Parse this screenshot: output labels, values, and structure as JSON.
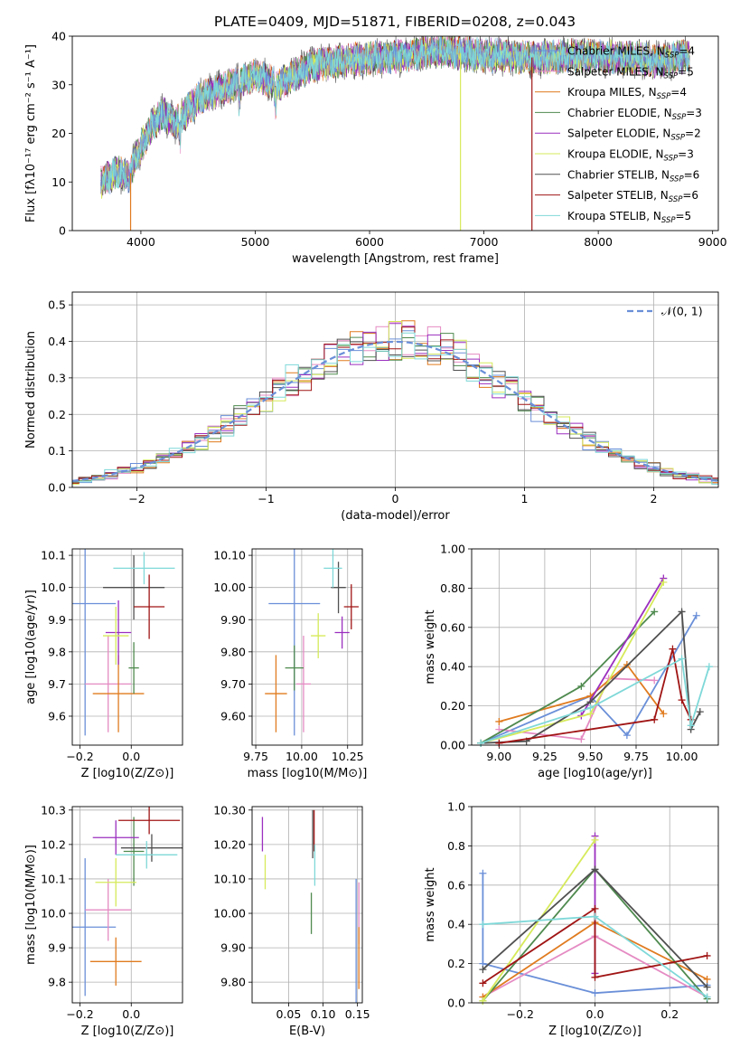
{
  "figure": {
    "title": "PLATE=0409, MJD=51871, FIBERID=0208, z=0.043"
  },
  "colors": {
    "Chabrier MILES": "#6a8fd8",
    "Salpeter MILES": "#e58bc3",
    "Kroupa MILES": "#e07b1f",
    "Chabrier ELODIE": "#4f8a4f",
    "Salpeter ELODIE": "#9b2fbf",
    "Kroupa ELODIE": "#d6ea5a",
    "Chabrier STELIB": "#505050",
    "Salpeter STELIB": "#a01414",
    "Kroupa STELIB": "#7fd8d8"
  },
  "chart_data": [
    {
      "id": "spectrum",
      "type": "line",
      "title": "PLATE=0409, MJD=51871, FIBERID=0208, z=0.043",
      "xlabel": "wavelength [Angstrom, rest frame]",
      "ylabel": "Flux [fλ10⁻¹⁷ erg cm⁻² s⁻¹ A⁻¹]",
      "xlim": [
        3400,
        9050
      ],
      "ylim": [
        0,
        40
      ],
      "xticks": [
        4000,
        5000,
        6000,
        7000,
        8000,
        9000
      ],
      "yticks": [
        0,
        10,
        20,
        30,
        40
      ],
      "grid": false,
      "legend_position": "right",
      "continuum": {
        "x": [
          3650,
          3800,
          3900,
          3950,
          4000,
          4100,
          4200,
          4300,
          4500,
          4700,
          5000,
          5200,
          5500,
          5800,
          6000,
          6300,
          6600,
          6800,
          7000,
          7200,
          7500,
          7800,
          8000,
          8300,
          8500,
          8800
        ],
        "y": [
          10,
          12,
          11,
          15,
          17,
          22,
          24,
          22,
          27,
          29,
          32,
          30,
          34,
          35,
          35.5,
          36,
          37,
          36.5,
          36,
          36,
          35.5,
          36,
          36,
          35.5,
          35,
          36
        ]
      },
      "series": [
        {
          "name": "Chabrier MILES, N_SSP=4",
          "label": "Chabrier MILES, N",
          "sub": "SSP",
          "suffix": "=4"
        },
        {
          "name": "Salpeter MILES, N_SSP=5",
          "label": "Salpeter MILES, N",
          "sub": "SSP",
          "suffix": "=5"
        },
        {
          "name": "Kroupa MILES, N_SSP=4",
          "label": "Kroupa MILES, N",
          "sub": "SSP",
          "suffix": "=4"
        },
        {
          "name": "Chabrier ELODIE, N_SSP=3",
          "label": "Chabrier ELODIE, N",
          "sub": "SSP",
          "suffix": "=3"
        },
        {
          "name": "Salpeter ELODIE, N_SSP=2",
          "label": "Salpeter ELODIE, N",
          "sub": "SSP",
          "suffix": "=2"
        },
        {
          "name": "Kroupa ELODIE, N_SSP=3",
          "label": "Kroupa ELODIE, N",
          "sub": "SSP",
          "suffix": "=3"
        },
        {
          "name": "Chabrier STELIB, N_SSP=6",
          "label": "Chabrier STELIB, N",
          "sub": "SSP",
          "suffix": "=6"
        },
        {
          "name": "Salpeter STELIB, N_SSP=6",
          "label": "Salpeter STELIB, N",
          "sub": "SSP",
          "suffix": "=6"
        },
        {
          "name": "Kroupa STELIB, N_SSP=5",
          "label": "Kroupa STELIB, N",
          "sub": "SSP",
          "suffix": "=5"
        }
      ]
    },
    {
      "id": "residuals",
      "type": "line",
      "xlabel": "(data-model)/error",
      "ylabel": "Normed distribution",
      "xlim": [
        -2.5,
        2.5
      ],
      "ylim": [
        0,
        0.535
      ],
      "xticks": [
        -2,
        -1,
        0,
        1,
        2
      ],
      "yticks": [
        0,
        0.1,
        0.2,
        0.3,
        0.4,
        0.5
      ],
      "grid": true,
      "legend_position": "top-right",
      "legend": "𝒩(0, 1)",
      "reference_curve": {
        "name": "normal(0,1)",
        "mean": 0,
        "sigma": 1
      },
      "histogram_bin_width": 0.1
    },
    {
      "id": "age-vs-Z",
      "type": "scatter",
      "xlabel": "Z [log10(Z/Z⊙)]",
      "ylabel": "age [log10(age/yr)]",
      "xlim": [
        -0.23,
        0.2
      ],
      "ylim": [
        9.51,
        10.12
      ],
      "xticks": [
        -0.2,
        0.0
      ],
      "yticks": [
        9.6,
        9.7,
        9.8,
        9.9,
        10.0,
        10.1
      ],
      "grid": true,
      "points": [
        {
          "series": "Chabrier MILES",
          "x": -0.18,
          "y": 9.95,
          "xerr": 0.12,
          "yerr": 0.41
        },
        {
          "series": "Salpeter MILES",
          "x": -0.09,
          "y": 9.7,
          "xerr": 0.09,
          "yerr": 0.15
        },
        {
          "series": "Kroupa MILES",
          "x": -0.05,
          "y": 9.67,
          "xerr": 0.1,
          "yerr": 0.12
        },
        {
          "series": "Chabrier ELODIE",
          "x": 0.01,
          "y": 9.75,
          "xerr": 0.02,
          "yerr": 0.08
        },
        {
          "series": "Salpeter ELODIE",
          "x": -0.05,
          "y": 9.86,
          "xerr": 0.05,
          "yerr": 0.1
        },
        {
          "series": "Kroupa ELODIE",
          "x": -0.06,
          "y": 9.85,
          "xerr": 0.05,
          "yerr": 0.09
        },
        {
          "series": "Chabrier STELIB",
          "x": 0.01,
          "y": 10.0,
          "xerr": 0.12,
          "yerr": 0.1
        },
        {
          "series": "Salpeter STELIB",
          "x": 0.07,
          "y": 9.94,
          "xerr": 0.06,
          "yerr": 0.1
        },
        {
          "series": "Kroupa STELIB",
          "x": 0.05,
          "y": 10.06,
          "xerr": 0.12,
          "yerr": 0.05
        }
      ]
    },
    {
      "id": "age-vs-mass",
      "type": "scatter",
      "xlabel": "mass [log10(M/M⊙)]",
      "ylabel": "",
      "xlim": [
        9.73,
        10.33
      ],
      "ylim": [
        9.51,
        10.12
      ],
      "xticks": [
        9.75,
        10.0,
        10.25
      ],
      "yticks": [
        9.6,
        9.7,
        9.8,
        9.9,
        10.0,
        10.1
      ],
      "grid": true,
      "points": [
        {
          "series": "Chabrier MILES",
          "x": 9.96,
          "y": 9.95,
          "xerr": 0.14,
          "yerr": 0.41
        },
        {
          "series": "Salpeter MILES",
          "x": 10.01,
          "y": 9.7,
          "xerr": 0.04,
          "yerr": 0.15
        },
        {
          "series": "Kroupa MILES",
          "x": 9.86,
          "y": 9.67,
          "xerr": 0.06,
          "yerr": 0.12
        },
        {
          "series": "Chabrier ELODIE",
          "x": 9.96,
          "y": 9.75,
          "xerr": 0.05,
          "yerr": 0.07
        },
        {
          "series": "Salpeter ELODIE",
          "x": 10.22,
          "y": 9.86,
          "xerr": 0.04,
          "yerr": 0.05
        },
        {
          "series": "Kroupa ELODIE",
          "x": 10.09,
          "y": 9.85,
          "xerr": 0.04,
          "yerr": 0.07
        },
        {
          "series": "Chabrier STELIB",
          "x": 10.2,
          "y": 10.0,
          "xerr": 0.04,
          "yerr": 0.08
        },
        {
          "series": "Salpeter STELIB",
          "x": 10.27,
          "y": 9.94,
          "xerr": 0.04,
          "yerr": 0.07
        },
        {
          "series": "Kroupa STELIB",
          "x": 10.17,
          "y": 10.06,
          "xerr": 0.05,
          "yerr": 0.06
        }
      ]
    },
    {
      "id": "weight-vs-age",
      "type": "line",
      "xlabel": "age [log10(age/yr)]",
      "ylabel": "mass weight",
      "xlim": [
        8.85,
        10.2
      ],
      "ylim": [
        0,
        1.0
      ],
      "xticks": [
        9.0,
        9.25,
        9.5,
        9.75,
        10.0
      ],
      "yticks": [
        0.0,
        0.2,
        0.4,
        0.6,
        0.8,
        1.0
      ],
      "grid": true,
      "series": [
        {
          "name": "Chabrier MILES",
          "x": [
            8.9,
            9.5,
            9.7,
            10.08
          ],
          "y": [
            0.01,
            0.25,
            0.05,
            0.66
          ]
        },
        {
          "name": "Salpeter MILES",
          "x": [
            9.0,
            9.45,
            9.6,
            9.85
          ],
          "y": [
            0.08,
            0.03,
            0.34,
            0.33
          ]
        },
        {
          "name": "Kroupa MILES",
          "x": [
            9.0,
            9.5,
            9.7,
            9.9
          ],
          "y": [
            0.12,
            0.25,
            0.41,
            0.16
          ]
        },
        {
          "name": "Chabrier ELODIE",
          "x": [
            8.9,
            9.45,
            9.85
          ],
          "y": [
            0.01,
            0.3,
            0.68
          ]
        },
        {
          "name": "Salpeter ELODIE",
          "x": [
            9.45,
            9.9
          ],
          "y": [
            0.15,
            0.85
          ]
        },
        {
          "name": "Kroupa ELODIE",
          "x": [
            8.9,
            9.5,
            9.9
          ],
          "y": [
            0.01,
            0.16,
            0.83
          ]
        },
        {
          "name": "Chabrier STELIB",
          "x": [
            8.9,
            9.15,
            9.5,
            10.0,
            10.05,
            10.1
          ],
          "y": [
            0.01,
            0.02,
            0.22,
            0.68,
            0.08,
            0.17
          ]
        },
        {
          "name": "Salpeter STELIB",
          "x": [
            9.0,
            9.85,
            9.95,
            10.0,
            10.05
          ],
          "y": [
            0.01,
            0.13,
            0.49,
            0.23,
            0.13
          ]
        },
        {
          "name": "Kroupa STELIB",
          "x": [
            8.9,
            9.5,
            10.0,
            10.05,
            10.15
          ],
          "y": [
            0.01,
            0.19,
            0.44,
            0.1,
            0.4
          ]
        }
      ]
    },
    {
      "id": "mass-vs-Z",
      "type": "scatter",
      "xlabel": "Z [log10(Z/Z⊙)]",
      "ylabel": "mass [log10(M/M⊙)]",
      "xlim": [
        -0.23,
        0.2
      ],
      "ylim": [
        9.74,
        10.31
      ],
      "xticks": [
        -0.2,
        0.0
      ],
      "yticks": [
        9.8,
        9.9,
        10.0,
        10.1,
        10.2,
        10.3
      ],
      "grid": true,
      "points": [
        {
          "series": "Chabrier MILES",
          "x": -0.18,
          "y": 9.96,
          "xerr": 0.12,
          "yerr": 0.2
        },
        {
          "series": "Salpeter MILES",
          "x": -0.09,
          "y": 10.01,
          "xerr": 0.09,
          "yerr": 0.09
        },
        {
          "series": "Kroupa MILES",
          "x": -0.06,
          "y": 9.86,
          "xerr": 0.1,
          "yerr": 0.07
        },
        {
          "series": "Chabrier ELODIE",
          "x": 0.01,
          "y": 10.18,
          "xerr": 0.04,
          "yerr": 0.1
        },
        {
          "series": "Salpeter ELODIE",
          "x": -0.06,
          "y": 10.22,
          "xerr": 0.09,
          "yerr": 0.05
        },
        {
          "series": "Kroupa ELODIE",
          "x": -0.06,
          "y": 10.09,
          "xerr": 0.08,
          "yerr": 0.07
        },
        {
          "series": "Chabrier STELIB",
          "x": 0.08,
          "y": 10.19,
          "xerr": 0.12,
          "yerr": 0.04
        },
        {
          "series": "Salpeter STELIB",
          "x": 0.07,
          "y": 10.27,
          "xerr": 0.12,
          "yerr": 0.04
        },
        {
          "series": "Kroupa STELIB",
          "x": 0.06,
          "y": 10.17,
          "xerr": 0.12,
          "yerr": 0.04
        }
      ]
    },
    {
      "id": "mass-vs-EBV",
      "type": "scatter",
      "xlabel": "E(B-V)",
      "ylabel": "",
      "xlim": [
        -0.003,
        0.157
      ],
      "ylim": [
        9.74,
        10.31
      ],
      "xticks": [
        0.05,
        0.1,
        0.15
      ],
      "yticks": [
        9.8,
        9.9,
        10.0,
        10.1,
        10.2,
        10.3
      ],
      "grid": true,
      "points": [
        {
          "series": "Chabrier MILES",
          "x": 0.148,
          "y": 9.9,
          "xerr": 0,
          "yerr": 0.2
        },
        {
          "series": "Salpeter MILES",
          "x": 0.152,
          "y": 10.0,
          "xerr": 0,
          "yerr": 0.09
        },
        {
          "series": "Kroupa MILES",
          "x": 0.152,
          "y": 9.87,
          "xerr": 0,
          "yerr": 0.09
        },
        {
          "series": "Chabrier ELODIE",
          "x": 0.083,
          "y": 10.0,
          "xerr": 0,
          "yerr": 0.06
        },
        {
          "series": "Salpeter ELODIE",
          "x": 0.012,
          "y": 10.23,
          "xerr": 0,
          "yerr": 0.05
        },
        {
          "series": "Kroupa ELODIE",
          "x": 0.016,
          "y": 10.12,
          "xerr": 0,
          "yerr": 0.05
        },
        {
          "series": "Chabrier STELIB",
          "x": 0.085,
          "y": 10.23,
          "xerr": 0,
          "yerr": 0.07
        },
        {
          "series": "Salpeter STELIB",
          "x": 0.087,
          "y": 10.24,
          "xerr": 0,
          "yerr": 0.06
        },
        {
          "series": "Kroupa STELIB",
          "x": 0.088,
          "y": 10.14,
          "xerr": 0,
          "yerr": 0.06
        }
      ]
    },
    {
      "id": "weight-vs-Z",
      "type": "line",
      "xlabel": "Z [log10(Z/Z⊙)]",
      "ylabel": "mass weight",
      "xlim": [
        -0.33,
        0.33
      ],
      "ylim": [
        0,
        1.0
      ],
      "xticks": [
        -0.2,
        0.0,
        0.2
      ],
      "yticks": [
        0.0,
        0.2,
        0.4,
        0.6,
        0.8,
        1.0
      ],
      "grid": true,
      "series": [
        {
          "name": "Chabrier MILES",
          "x": [
            -0.3,
            -0.3,
            0.0,
            0.3
          ],
          "y": [
            0.66,
            0.2,
            0.05,
            0.09
          ]
        },
        {
          "name": "Salpeter MILES",
          "x": [
            -0.3,
            0.0,
            0.3
          ],
          "y": [
            0.03,
            0.34,
            0.03
          ]
        },
        {
          "name": "Kroupa MILES",
          "x": [
            -0.3,
            0.0,
            0.3
          ],
          "y": [
            0.03,
            0.41,
            0.12
          ]
        },
        {
          "name": "Chabrier ELODIE",
          "x": [
            -0.3,
            0.0,
            0.3
          ],
          "y": [
            0.01,
            0.68,
            0.02
          ]
        },
        {
          "name": "Salpeter ELODIE",
          "x": [
            0.0,
            0.0
          ],
          "y": [
            0.15,
            0.85
          ]
        },
        {
          "name": "Kroupa ELODIE",
          "x": [
            -0.3,
            0.0
          ],
          "y": [
            0.01,
            0.83
          ]
        },
        {
          "name": "Chabrier STELIB",
          "x": [
            -0.3,
            0.0,
            0.3
          ],
          "y": [
            0.17,
            0.68,
            0.08
          ]
        },
        {
          "name": "Salpeter STELIB",
          "x": [
            -0.3,
            0.0,
            0.0,
            0.3
          ],
          "y": [
            0.1,
            0.48,
            0.13,
            0.24
          ]
        },
        {
          "name": "Kroupa STELIB",
          "x": [
            -0.3,
            0.0,
            0.3
          ],
          "y": [
            0.4,
            0.44,
            0.03
          ]
        }
      ]
    }
  ]
}
